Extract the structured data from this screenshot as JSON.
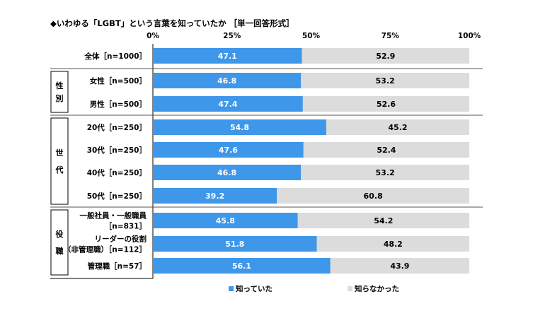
{
  "chart_data": {
    "type": "bar",
    "stacked": true,
    "orientation": "horizontal",
    "title": "◆いわゆる「LGBT」という言葉を知っていたか ［単一回答形式］",
    "xlim": [
      0,
      100
    ],
    "xticks": [
      "0%",
      "25%",
      "50%",
      "75%",
      "100%"
    ],
    "groups": [
      {
        "label": "",
        "rows": [
          0
        ]
      },
      {
        "label": "性別",
        "rows": [
          1,
          2
        ]
      },
      {
        "label": "世代",
        "rows": [
          3,
          4,
          5,
          6
        ]
      },
      {
        "label": "役職",
        "rows": [
          7,
          8,
          9
        ]
      }
    ],
    "categories": [
      [
        "全体［n=1000］"
      ],
      [
        "女性［n=500］"
      ],
      [
        "男性［n=500］"
      ],
      [
        "20代［n=250］"
      ],
      [
        "30代［n=250］"
      ],
      [
        "40代［n=250］"
      ],
      [
        "50代［n=250］"
      ],
      [
        "一般社員・一般職員",
        "［n=831］"
      ],
      [
        "リーダーの役割",
        "（非管理職）［n=112］"
      ],
      [
        "管理職［n=57］"
      ]
    ],
    "series": [
      {
        "name": "知っていた",
        "color": "#3f97ea",
        "label_color": "#ffffff",
        "values": [
          47.1,
          46.8,
          47.4,
          54.8,
          47.6,
          46.8,
          39.2,
          45.8,
          51.8,
          56.1
        ]
      },
      {
        "name": "知らなかった",
        "color": "#dcdcdc",
        "label_color": "#000000",
        "values": [
          52.9,
          53.2,
          52.6,
          45.2,
          52.4,
          53.2,
          60.8,
          54.2,
          48.2,
          43.9
        ]
      }
    ],
    "legend_position": "bottom",
    "grid": false
  }
}
